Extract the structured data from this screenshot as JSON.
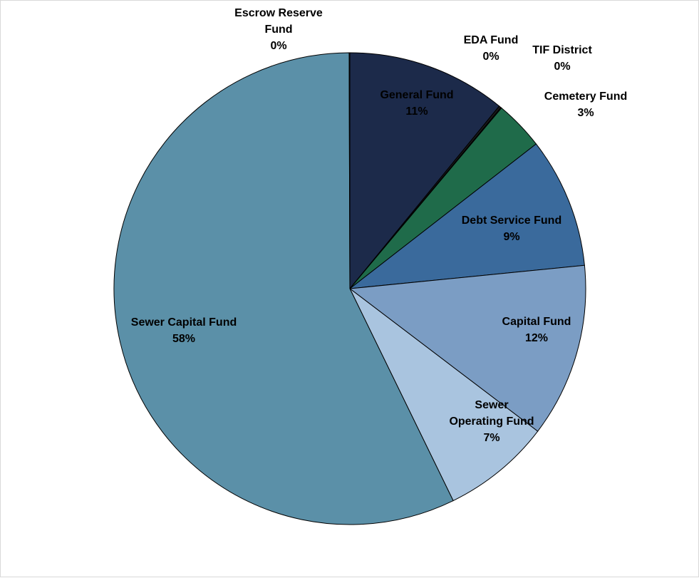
{
  "chart_data": {
    "type": "pie",
    "title": "",
    "slices": [
      {
        "label_lines": [
          "General Fund"
        ],
        "value": 11,
        "pct_label": "11%",
        "color": "#1c2a4a"
      },
      {
        "label_lines": [
          "EDA Fund"
        ],
        "value": 0.15,
        "pct_label": "0%",
        "color": "#1a1a1a"
      },
      {
        "label_lines": [
          "TIF District"
        ],
        "value": 0.05,
        "pct_label": "0%",
        "color": "#2f4f4f"
      },
      {
        "label_lines": [
          "Cemetery Fund"
        ],
        "value": 3.4,
        "pct_label": "3%",
        "color": "#1f6b4a"
      },
      {
        "label_lines": [
          "Debt Service Fund"
        ],
        "value": 9,
        "pct_label": "9%",
        "color": "#3a6a9c"
      },
      {
        "label_lines": [
          "Capital Fund"
        ],
        "value": 12,
        "pct_label": "12%",
        "color": "#7b9dc4"
      },
      {
        "label_lines": [
          "Sewer",
          "Operating Fund"
        ],
        "value": 7.5,
        "pct_label": "7%",
        "color": "#a9c4df"
      },
      {
        "label_lines": [
          "Sewer Capital Fund"
        ],
        "value": 57.6,
        "pct_label": "58%",
        "color": "#5b90a8"
      },
      {
        "label_lines": [
          "Escrow Reserve",
          "Fund"
        ],
        "value": 0.05,
        "pct_label": "0%",
        "color": "#4f7f95"
      }
    ]
  }
}
